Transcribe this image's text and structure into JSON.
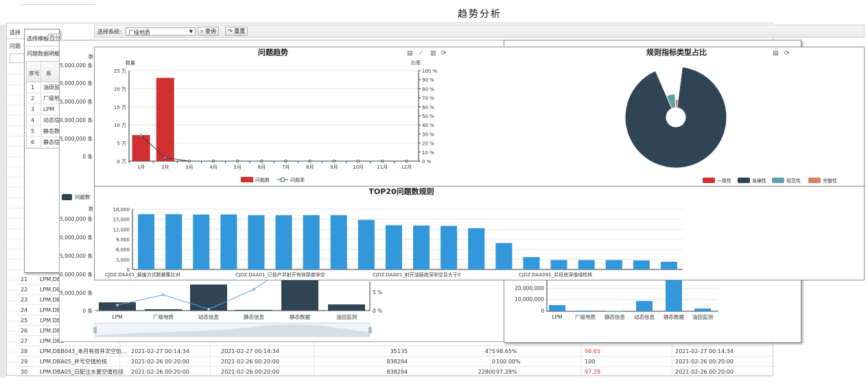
{
  "page_title": "趋势分析",
  "toolbar": {
    "select_label": "选择系统:",
    "select_value": "厂级地质",
    "query_label": "查询",
    "reset_label": "重置"
  },
  "back_panel": {
    "tab1": "选择",
    "tab2": "问题"
  },
  "template_panel": {
    "select_label": "选择模板:",
    "select_value": "百分",
    "subtitle": "问题数据明细",
    "headers": [
      "序号",
      "系"
    ],
    "rows": [
      [
        "1",
        "油田监"
      ],
      [
        "2",
        "厂级地"
      ],
      [
        "3",
        "LPM"
      ],
      [
        "4",
        "动态信"
      ],
      [
        "5",
        "静态数"
      ],
      [
        "6",
        "静态信"
      ]
    ]
  },
  "bottom_table": {
    "rows": [
      {
        "num": "21",
        "name": "LPM.DBB"
      },
      {
        "num": "22",
        "name": "LPM.DBB"
      },
      {
        "num": "23",
        "name": "LPM.DBE"
      },
      {
        "num": "24",
        "name": "LPM.DBE"
      },
      {
        "num": "25",
        "name": "LPM.DBE"
      },
      {
        "num": "26",
        "name": "LPM.DBE"
      },
      {
        "num": "27",
        "name": "LPM.DBB"
      },
      {
        "num": "28",
        "name": "LPM.DBB043_本月有效井次空值...",
        "t1": "2021-02-27 00:14:34",
        "t2": "2021-02-27 00:14:34",
        "total": "35135",
        "err": "475",
        "rate": "98.65%",
        "score": "98.65",
        "t3": "2021-02-27 00:14:34"
      },
      {
        "num": "29",
        "name": "LPM.DBA05_井号空值检核",
        "t1": "2021-02-26 00:20:00",
        "t2": "2021-02-26 00:20:00",
        "total": "838284",
        "err": "0",
        "rate": "100.00%",
        "score": "100",
        "t3": "2021-02-26 00:20:00"
      },
      {
        "num": "30",
        "name": "LPM.DBA05_日配注水量空值检核",
        "t1": "2021-02-26 00:20:00",
        "t2": "2021-02-26 00:20:00",
        "total": "838284",
        "err": "22800",
        "rate": "97.28%",
        "score": "97.28",
        "t3": "2021-02-26 00:20:00"
      }
    ],
    "red_color": "#e0343a"
  },
  "behind_left": {
    "y_title": "数",
    "legend": "问题数",
    "y_ticks": [
      "25,000,000 条",
      "20,000,000 条",
      "15,000,000 条",
      "10,000,000 条",
      "5,000,000 条",
      "0 条"
    ],
    "y_ticks2": [
      "15,000,000 条",
      "10,000,000 条",
      "5,000,000 条"
    ],
    "y_ticks3": [
      "0,000,000 条",
      "5,000,000 条",
      "0 条"
    ],
    "right_ticks": [
      "5 %",
      "0 %"
    ],
    "categories": [
      "LPM",
      "厂级地质",
      "动态信息",
      "静态信息",
      "静态数据",
      "油田监测"
    ]
  },
  "behind_right": {
    "y_ticks": [
      "20,000,000",
      "10,000,000",
      "0"
    ],
    "categories": [
      "LPM",
      "厂级地质",
      "静态信息",
      "动态信息",
      "静态数据",
      "油田监测"
    ]
  },
  "chart_data": [
    {
      "type": "bar",
      "title": "问题趋势",
      "ylabel": "数量",
      "y2label": "比率",
      "categories": [
        "1月",
        "2月",
        "3月",
        "4月",
        "5月",
        "6月",
        "7月",
        "8月",
        "9月",
        "10月",
        "11月",
        "12月"
      ],
      "y_ticks": [
        "25 万",
        "20 万",
        "15 万",
        "10 万",
        "5 万",
        "0 万"
      ],
      "y2_ticks": [
        "100 %",
        "90 %",
        "80 %",
        "70 %",
        "60 %",
        "50 %",
        "40 %",
        "30 %",
        "20 %",
        "10 %",
        "0 %"
      ],
      "ylim": [
        0,
        25
      ],
      "y2lim": [
        0,
        100
      ],
      "series": [
        {
          "name": "问题数",
          "type": "bar",
          "values": [
            7.2,
            23,
            0,
            0,
            0,
            0,
            0,
            0,
            0,
            0,
            0,
            0
          ],
          "color": "#d0302f"
        },
        {
          "name": "问题率",
          "type": "line",
          "axis": "right",
          "values": [
            28,
            4,
            0,
            0,
            0,
            0,
            0,
            0,
            0,
            0,
            0,
            0
          ],
          "color": "#2f4554"
        }
      ]
    },
    {
      "type": "pie",
      "title": "规则指标类型占比",
      "legend": [
        "一致性",
        "准确性",
        "规范性",
        "完整性"
      ],
      "colors": [
        "#d0302f",
        "#2f4554",
        "#61a0a8",
        "#d48265"
      ],
      "values": [
        2,
        90,
        6,
        0.5
      ]
    },
    {
      "type": "bar",
      "title": "TOP20问题数规则",
      "y_ticks": [
        "18,000",
        "15,000",
        "12,000",
        "9,000",
        "6,000",
        "3,000",
        "0"
      ],
      "ylim": [
        0,
        18000
      ],
      "x_labels": [
        "CJDZ.DAA01_报废方式数据集比对",
        "CJDZ.DAA01_已投产井射开有效厚度非空",
        "CJDZ.DAA01_射开油层底深非空且大于0",
        "CJDZ.DAA091_井段底深值域检核"
      ],
      "values": [
        16500,
        16500,
        16400,
        16400,
        16200,
        16200,
        16200,
        16200,
        14800,
        13200,
        13100,
        13000,
        12300,
        7900,
        3700,
        2800,
        2800,
        2800,
        2700,
        2300
      ],
      "color": "#3398db"
    }
  ]
}
